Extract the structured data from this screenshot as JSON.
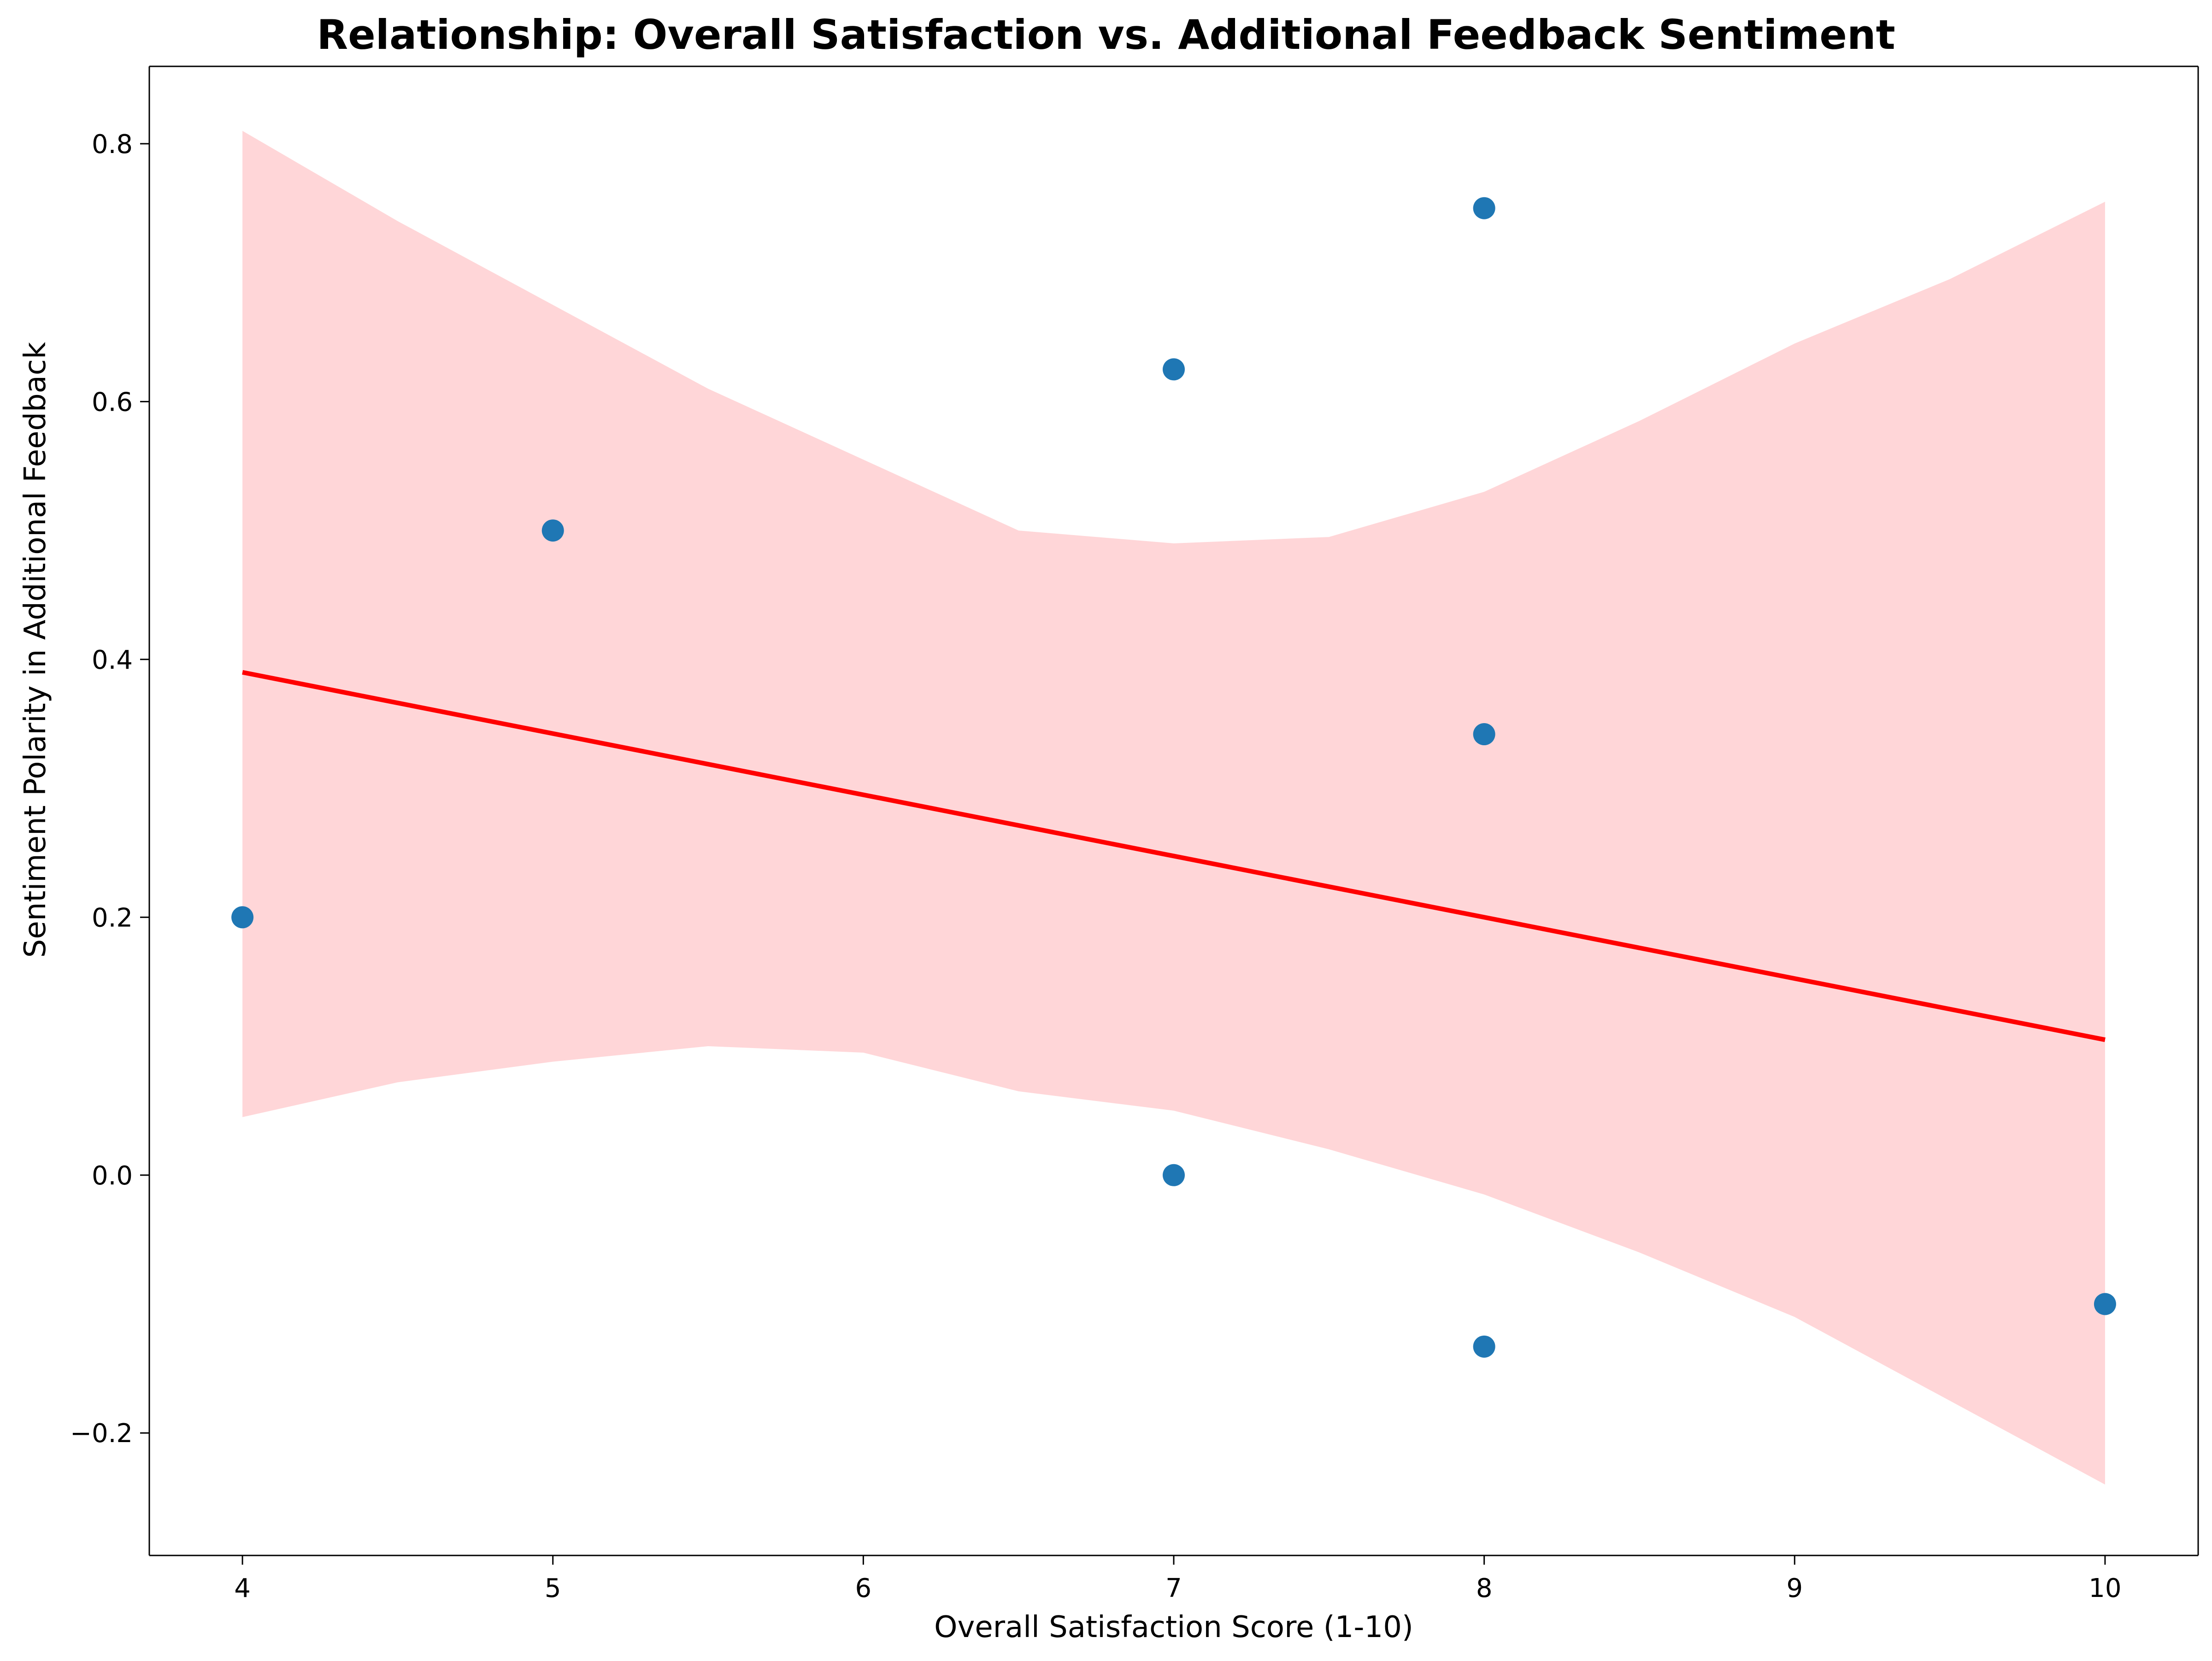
{
  "chart_data": {
    "type": "scatter",
    "title": "Relationship: Overall Satisfaction vs. Additional Feedback Sentiment",
    "xlabel": "Overall Satisfaction Score (1-10)",
    "ylabel": "Sentiment Polarity in Additional Feedback",
    "xlim": [
      3.7,
      10.3
    ],
    "ylim": [
      -0.295,
      0.86
    ],
    "x_ticks": [
      4,
      5,
      6,
      7,
      8,
      9,
      10
    ],
    "x_tick_labels": [
      "4",
      "5",
      "6",
      "7",
      "8",
      "9",
      "10"
    ],
    "y_ticks": [
      -0.2,
      0.0,
      0.2,
      0.4,
      0.6,
      0.8
    ],
    "y_tick_labels": [
      "−0.2",
      "0.0",
      "0.2",
      "0.4",
      "0.6",
      "0.8"
    ],
    "grid": false,
    "legend": false,
    "points": [
      {
        "x": 4,
        "y": 0.2
      },
      {
        "x": 5,
        "y": 0.5
      },
      {
        "x": 7,
        "y": 0.625
      },
      {
        "x": 7,
        "y": 0.0
      },
      {
        "x": 8,
        "y": 0.75
      },
      {
        "x": 8,
        "y": 0.342
      },
      {
        "x": 8,
        "y": -0.133
      },
      {
        "x": 10,
        "y": -0.1
      }
    ],
    "regression_line": {
      "x": [
        4,
        10
      ],
      "y": [
        0.39,
        0.105
      ]
    },
    "confidence_band": {
      "x": [
        4.0,
        4.5,
        5.0,
        5.5,
        6.0,
        6.5,
        7.0,
        7.5,
        8.0,
        8.5,
        9.0,
        9.5,
        10.0
      ],
      "upper": [
        0.81,
        0.74,
        0.675,
        0.61,
        0.555,
        0.5,
        0.49,
        0.495,
        0.53,
        0.585,
        0.645,
        0.695,
        0.755
      ],
      "lower": [
        0.045,
        0.072,
        0.088,
        0.1,
        0.095,
        0.065,
        0.05,
        0.02,
        -0.015,
        -0.06,
        -0.11,
        -0.175,
        -0.24
      ]
    },
    "colors": {
      "points": "#1f77b4",
      "regression_line": "#ff0000",
      "confidence_band": "#ffd6d8",
      "axes": "#000000"
    }
  }
}
